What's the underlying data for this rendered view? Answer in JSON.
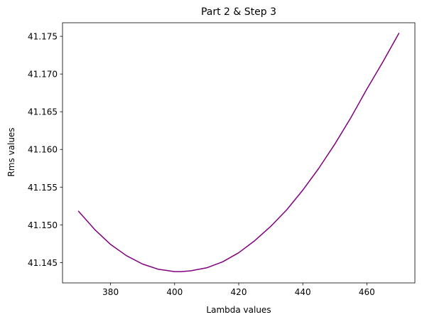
{
  "chart_data": {
    "type": "line",
    "title": "Part 2 & Step 3",
    "xlabel": "Lambda values",
    "ylabel": "Rms values",
    "xlim": [
      365,
      475
    ],
    "ylim": [
      41.1423,
      41.1768
    ],
    "xticks": [
      380,
      400,
      420,
      440,
      460
    ],
    "xtick_labels": [
      "380",
      "400",
      "420",
      "440",
      "460"
    ],
    "yticks": [
      41.145,
      41.15,
      41.155,
      41.16,
      41.165,
      41.17,
      41.175
    ],
    "ytick_labels": [
      "41.145",
      "41.150",
      "41.155",
      "41.160",
      "41.165",
      "41.170",
      "41.175"
    ],
    "grid": false,
    "series": [
      {
        "color": "#800080",
        "x": [
          370,
          375,
          380,
          385,
          390,
          395,
          400,
          402,
          405,
          410,
          415,
          420,
          425,
          430,
          435,
          440,
          445,
          450,
          455,
          460,
          465,
          470
        ],
        "y": [
          41.1518,
          41.1494,
          41.1474,
          41.1459,
          41.1448,
          41.1441,
          41.1438,
          41.1438,
          41.1439,
          41.1443,
          41.1451,
          41.1463,
          41.1479,
          41.1498,
          41.152,
          41.1546,
          41.1575,
          41.1607,
          41.1642,
          41.168,
          41.1716,
          41.1754
        ]
      }
    ]
  }
}
